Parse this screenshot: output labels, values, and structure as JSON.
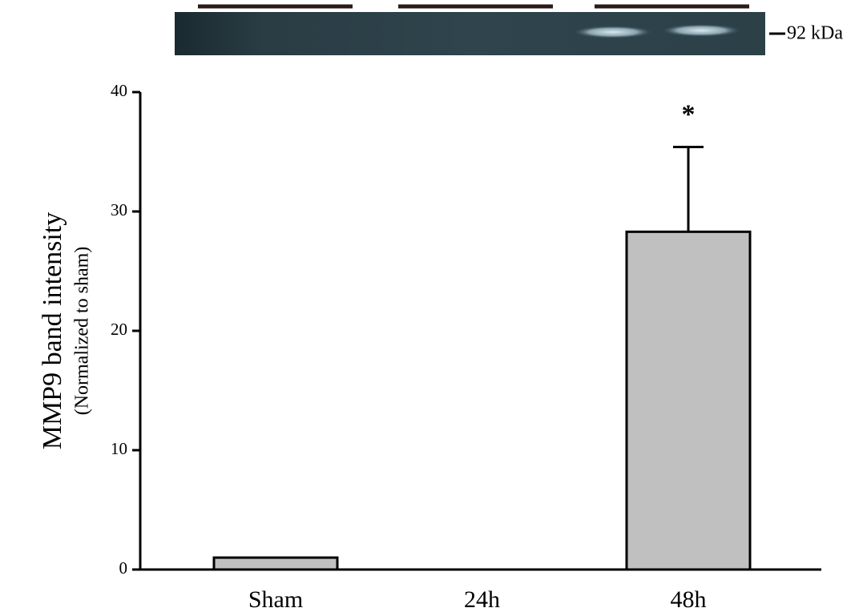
{
  "chart_data": {
    "type": "bar",
    "blot_label": "92 kDa",
    "y_label": [
      "MMP9 band intensity",
      "(Normalized to sham)"
    ],
    "categories": [
      "Sham",
      "24h",
      "48h"
    ],
    "values": [
      1,
      0,
      28.3
    ],
    "errors": [
      null,
      null,
      7.1
    ],
    "annotations": [
      null,
      null,
      "*"
    ],
    "color": "#c0c0c0",
    "ylim": [
      0,
      40
    ],
    "yticks": [
      0,
      10,
      20,
      30,
      40
    ],
    "grid": false
  }
}
